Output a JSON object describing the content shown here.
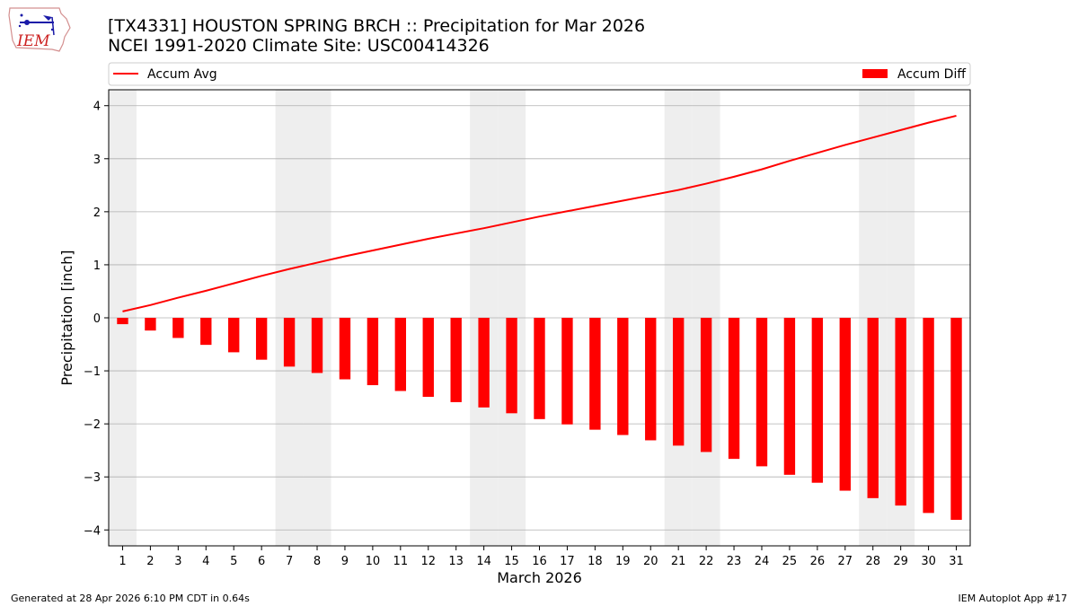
{
  "header": {
    "title_line1": "[TX4331] HOUSTON SPRING BRCH :: Precipitation for Mar 2026",
    "title_line2": "NCEI 1991-2020 Climate Site: USC00414326"
  },
  "logo": {
    "text": "IEM"
  },
  "footer": {
    "generated": "Generated at 28 Apr 2026 6:10 PM CDT in 0.64s",
    "app": "IEM Autoplot App #17"
  },
  "colors": {
    "series": "#ff0000",
    "weekend_band": "#eeeeee",
    "grid": "#b0b0b0"
  },
  "chart_data": {
    "type": "bar",
    "xlabel": "March 2026",
    "ylabel": "Precipitation [inch]",
    "ylim": [
      -4.3,
      4.3
    ],
    "yticks": [
      4,
      3,
      2,
      1,
      0,
      -1,
      -2,
      -3,
      -4
    ],
    "ytick_labels": [
      "4",
      "3",
      "2",
      "1",
      "0",
      "−1",
      "−2",
      "−3",
      "−4"
    ],
    "xlim": [
      0.5,
      31.5
    ],
    "x": [
      1,
      2,
      3,
      4,
      5,
      6,
      7,
      8,
      9,
      10,
      11,
      12,
      13,
      14,
      15,
      16,
      17,
      18,
      19,
      20,
      21,
      22,
      23,
      24,
      25,
      26,
      27,
      28,
      29,
      30,
      31
    ],
    "xtick_labels": [
      "1",
      "2",
      "3",
      "4",
      "5",
      "6",
      "7",
      "8",
      "9",
      "10",
      "11",
      "12",
      "13",
      "14",
      "15",
      "16",
      "17",
      "18",
      "19",
      "20",
      "21",
      "22",
      "23",
      "24",
      "25",
      "26",
      "27",
      "28",
      "29",
      "30",
      "31"
    ],
    "weekend_days": [
      1,
      7,
      8,
      14,
      15,
      21,
      22,
      28,
      29
    ],
    "grid": "horizontal",
    "legend_placement": "top",
    "series": [
      {
        "name": "Accum Avg",
        "kind": "line",
        "values": [
          0.12,
          0.24,
          0.38,
          0.51,
          0.65,
          0.79,
          0.92,
          1.04,
          1.16,
          1.27,
          1.38,
          1.49,
          1.59,
          1.69,
          1.8,
          1.91,
          2.01,
          2.11,
          2.21,
          2.31,
          2.41,
          2.53,
          2.66,
          2.8,
          2.96,
          3.11,
          3.26,
          3.4,
          3.54,
          3.68,
          3.81
        ]
      },
      {
        "name": "Accum Diff",
        "kind": "bar",
        "values": [
          -0.12,
          -0.24,
          -0.38,
          -0.51,
          -0.65,
          -0.79,
          -0.92,
          -1.04,
          -1.16,
          -1.27,
          -1.38,
          -1.49,
          -1.59,
          -1.69,
          -1.8,
          -1.91,
          -2.01,
          -2.11,
          -2.21,
          -2.31,
          -2.41,
          -2.53,
          -2.66,
          -2.8,
          -2.96,
          -3.11,
          -3.26,
          -3.4,
          -3.54,
          -3.68,
          -3.81
        ]
      }
    ]
  }
}
